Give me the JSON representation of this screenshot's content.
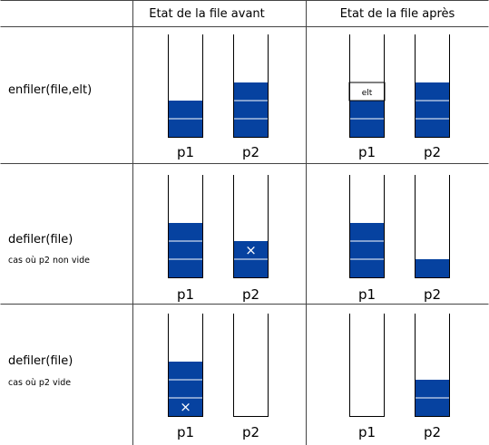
{
  "header": {
    "before": "Etat de la file avant",
    "after": "Etat de la file après"
  },
  "stack_names": {
    "p1": "p1",
    "p2": "p2"
  },
  "colors": {
    "fill": "#0642a0",
    "line": "#000000",
    "separator": "#ffffff",
    "grid": "#444444"
  },
  "rows": [
    {
      "operation": "enfiler(file,elt)",
      "note": "",
      "before": {
        "p1": {
          "blue_cells": 2,
          "mark": null,
          "white_label": null
        },
        "p2": {
          "blue_cells": 3,
          "mark": null,
          "white_label": null
        }
      },
      "after": {
        "p1": {
          "blue_cells": 2,
          "mark": null,
          "white_label": "elt"
        },
        "p2": {
          "blue_cells": 3,
          "mark": null,
          "white_label": null
        }
      }
    },
    {
      "operation": "defiler(file)",
      "note": "cas où p2 non vide",
      "before": {
        "p1": {
          "blue_cells": 3,
          "mark": null,
          "white_label": null
        },
        "p2": {
          "blue_cells": 2,
          "mark": "×",
          "mark_cell": 1,
          "white_label": null
        }
      },
      "after": {
        "p1": {
          "blue_cells": 3,
          "mark": null,
          "white_label": null
        },
        "p2": {
          "blue_cells": 1,
          "mark": null,
          "white_label": null
        }
      }
    },
    {
      "operation": "defiler(file)",
      "note": "cas où p2 vide",
      "before": {
        "p1": {
          "blue_cells": 3,
          "mark": "×",
          "mark_cell": 0,
          "white_label": null
        },
        "p2": {
          "blue_cells": 0,
          "mark": null,
          "white_label": null
        }
      },
      "after": {
        "p1": {
          "blue_cells": 0,
          "mark": null,
          "white_label": null
        },
        "p2": {
          "blue_cells": 2,
          "mark": null,
          "white_label": null
        }
      }
    }
  ]
}
